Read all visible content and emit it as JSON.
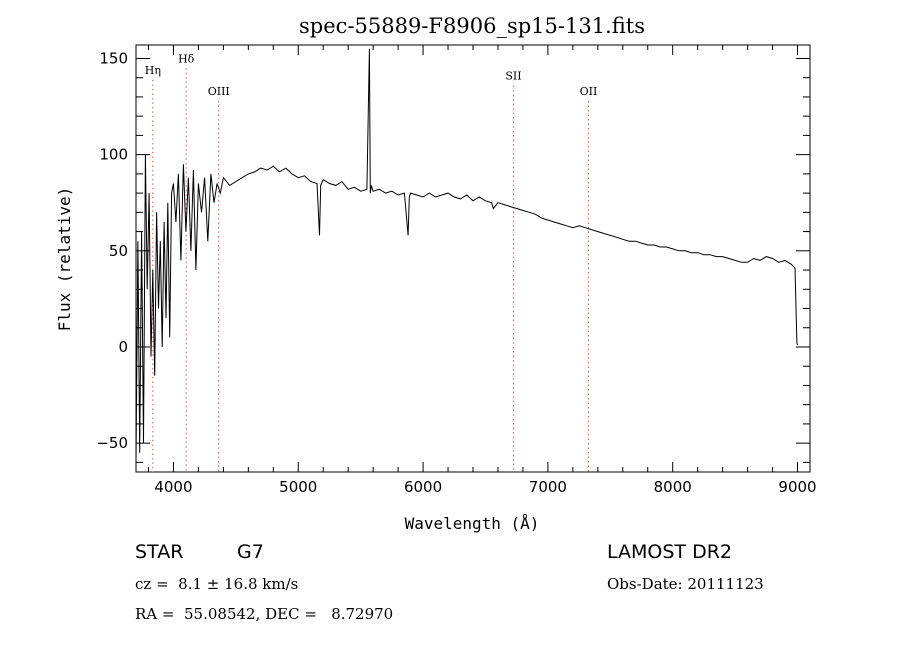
{
  "chart_data": {
    "type": "line",
    "title": "spec-55889-F8906_sp15-131.fits",
    "xlabel": "Wavelength (Å)",
    "ylabel": "Flux (relative)",
    "xlim": [
      3700,
      9100
    ],
    "ylim": [
      -65,
      157
    ],
    "x_ticks": [
      4000,
      5000,
      6000,
      7000,
      8000,
      9000
    ],
    "y_ticks": [
      -50,
      0,
      50,
      100,
      150
    ],
    "x_tick_labels": [
      "4000",
      "5000",
      "6000",
      "7000",
      "8000",
      "9000"
    ],
    "y_tick_labels": [
      "−50",
      "0",
      "50",
      "100",
      "150"
    ],
    "grid": false,
    "line_color": "#000000",
    "marker_color": "#d9534f",
    "spectral_lines": [
      {
        "label": "Hη",
        "wavelength": 3835,
        "label_level": 142
      },
      {
        "label": "Hδ",
        "wavelength": 4102,
        "label_level": 148
      },
      {
        "label": "OIII",
        "wavelength": 4363,
        "label_level": 131
      },
      {
        "label": "SII",
        "wavelength": 6724,
        "label_level": 139
      },
      {
        "label": "OII",
        "wavelength": 7325,
        "label_level": 131
      }
    ],
    "series": [
      {
        "x": [
          3700,
          3715,
          3730,
          3745,
          3760,
          3775,
          3790,
          3805,
          3820,
          3835,
          3850,
          3865,
          3880,
          3895,
          3910,
          3925,
          3940,
          3955,
          3970,
          3985,
          4000,
          4020,
          4040,
          4060,
          4080,
          4100,
          4120,
          4140,
          4160,
          4180,
          4200,
          4225,
          4250,
          4275,
          4300,
          4325,
          4350,
          4375,
          4400,
          4450,
          4500,
          4550,
          4600,
          4650,
          4700,
          4750,
          4800,
          4850,
          4900,
          4950,
          5000,
          5050,
          5100,
          5150,
          5170,
          5180,
          5200,
          5250,
          5300,
          5350,
          5400,
          5450,
          5500,
          5550,
          5570,
          5577,
          5584,
          5600,
          5650,
          5700,
          5750,
          5800,
          5850,
          5880,
          5890,
          5900,
          5950,
          6000,
          6050,
          6100,
          6150,
          6200,
          6250,
          6300,
          6350,
          6400,
          6450,
          6500,
          6550,
          6563,
          6600,
          6650,
          6700,
          6750,
          6800,
          6850,
          6900,
          6950,
          7000,
          7050,
          7100,
          7150,
          7200,
          7250,
          7300,
          7350,
          7400,
          7450,
          7500,
          7550,
          7600,
          7650,
          7700,
          7750,
          7800,
          7850,
          7900,
          7950,
          8000,
          8050,
          8100,
          8150,
          8200,
          8250,
          8300,
          8350,
          8400,
          8450,
          8500,
          8550,
          8600,
          8650,
          8700,
          8750,
          8800,
          8850,
          8900,
          8950,
          8980,
          8995,
          9000
        ],
        "y": [
          -60,
          55,
          -55,
          60,
          -50,
          100,
          30,
          80,
          -5,
          40,
          -15,
          70,
          20,
          55,
          0,
          65,
          15,
          75,
          5,
          80,
          85,
          65,
          90,
          45,
          95,
          60,
          88,
          50,
          92,
          40,
          85,
          70,
          88,
          55,
          90,
          75,
          85,
          80,
          88,
          84,
          86,
          88,
          90,
          91,
          93,
          92,
          94,
          91,
          93,
          90,
          88,
          89,
          86,
          85,
          58,
          84,
          87,
          85,
          84,
          86,
          82,
          83,
          81,
          82,
          155,
          80,
          84,
          81,
          82,
          80,
          81,
          79,
          80,
          58,
          78,
          80,
          79,
          78,
          80,
          78,
          79,
          80,
          78,
          77,
          79,
          76,
          78,
          76,
          75,
          72,
          75,
          74,
          73,
          72,
          71,
          70,
          69,
          67,
          66,
          65,
          64,
          63,
          62,
          63,
          62,
          61,
          60,
          59,
          58,
          57,
          56,
          55,
          55,
          54,
          53,
          53,
          52,
          52,
          51,
          50,
          50,
          49,
          49,
          48,
          48,
          47,
          47,
          46,
          45,
          44,
          44,
          46,
          45,
          47,
          46,
          44,
          45,
          43,
          41,
          2,
          1
        ]
      }
    ]
  },
  "info": {
    "object_class": "STAR",
    "subclass": "G7",
    "redshift": "cz =  8.1 ± 16.8 km/s",
    "coords": "RA =  55.08542, DEC =   8.72970",
    "survey": "LAMOST DR2",
    "obs_date": "Obs-Date: 20111123"
  }
}
